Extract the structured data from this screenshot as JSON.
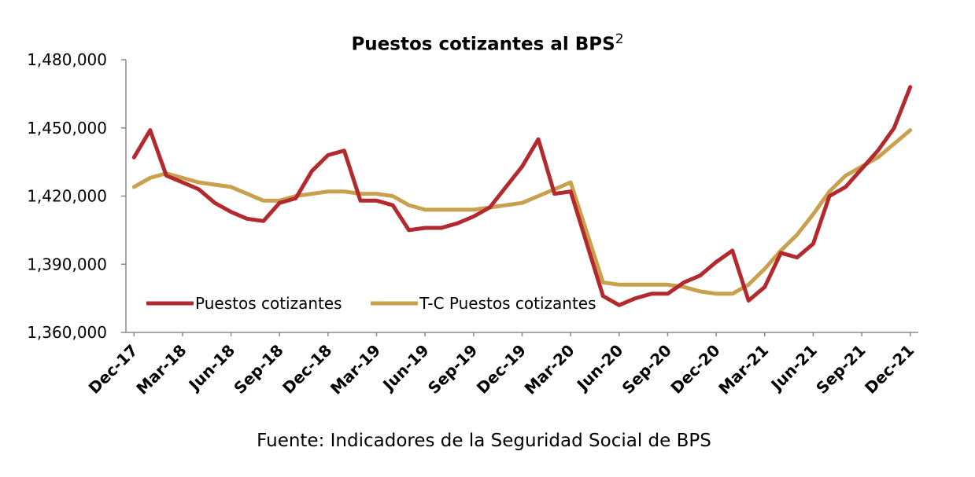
{
  "chart_data": {
    "type": "line",
    "title": "Puestos cotizantes al BPS",
    "title_superscript": "2",
    "source": "Fuente: Indicadores de la Seguridad Social de BPS",
    "xlabel": "",
    "ylabel": "",
    "ylim": [
      1360000,
      1480000
    ],
    "yticks": [
      "1,360,000",
      "1,390,000",
      "1,420,000",
      "1,450,000",
      "1,480,000"
    ],
    "ytick_values": [
      1360000,
      1390000,
      1420000,
      1450000,
      1480000
    ],
    "x": [
      "Dec-17",
      "Jan-18",
      "Feb-18",
      "Mar-18",
      "Apr-18",
      "May-18",
      "Jun-18",
      "Jul-18",
      "Aug-18",
      "Sep-18",
      "Oct-18",
      "Nov-18",
      "Dec-18",
      "Jan-19",
      "Feb-19",
      "Mar-19",
      "Apr-19",
      "May-19",
      "Jun-19",
      "Jul-19",
      "Aug-19",
      "Sep-19",
      "Oct-19",
      "Nov-19",
      "Dec-19",
      "Jan-20",
      "Feb-20",
      "Mar-20",
      "Apr-20",
      "May-20",
      "Jun-20",
      "Jul-20",
      "Aug-20",
      "Sep-20",
      "Oct-20",
      "Nov-20",
      "Dec-20",
      "Jan-21",
      "Feb-21",
      "Mar-21",
      "Apr-21",
      "May-21",
      "Jun-21",
      "Jul-21",
      "Aug-21",
      "Sep-21",
      "Oct-21",
      "Nov-21",
      "Dec-21"
    ],
    "xtick_labels": [
      "Dec-17",
      "Mar-18",
      "Jun-18",
      "Sep-18",
      "Dec-18",
      "Mar-19",
      "Jun-19",
      "Sep-19",
      "Dec-19",
      "Mar-20",
      "Jun-20",
      "Sep-20",
      "Dec-20",
      "Mar-21",
      "Jun-21",
      "Sep-21",
      "Dec-21"
    ],
    "xtick_indices": [
      0,
      3,
      6,
      9,
      12,
      15,
      18,
      21,
      24,
      27,
      30,
      33,
      36,
      39,
      42,
      45,
      48
    ],
    "grid": false,
    "legend_position": "bottom-left",
    "series": [
      {
        "name": "Puestos cotizantes",
        "color": "#b22a2e",
        "values": [
          1437000,
          1449000,
          1429000,
          1426000,
          1423000,
          1417000,
          1413000,
          1410000,
          1409000,
          1417000,
          1419000,
          1431000,
          1438000,
          1440000,
          1418000,
          1418000,
          1416000,
          1405000,
          1406000,
          1406000,
          1408000,
          1411000,
          1415000,
          1424000,
          1433000,
          1445000,
          1421000,
          1422000,
          1399000,
          1376000,
          1372000,
          1375000,
          1377000,
          1377000,
          1382000,
          1385000,
          1391000,
          1396000,
          1374000,
          1380000,
          1395000,
          1393000,
          1399000,
          1420000,
          1424000,
          1432000,
          1440000,
          1450000,
          1468000
        ]
      },
      {
        "name": "T-C Puestos cotizantes",
        "color": "#c9a04e",
        "values": [
          1424000,
          1428000,
          1430000,
          1428000,
          1426000,
          1425000,
          1424000,
          1421000,
          1418000,
          1418000,
          1420000,
          1421000,
          1422000,
          1422000,
          1421000,
          1421000,
          1420000,
          1416000,
          1414000,
          1414000,
          1414000,
          1414000,
          1415000,
          1416000,
          1417000,
          1420000,
          1423000,
          1426000,
          1404000,
          1382000,
          1381000,
          1381000,
          1381000,
          1381000,
          1380000,
          1378000,
          1377000,
          1377000,
          1381000,
          1388000,
          1396000,
          1403000,
          1412000,
          1422000,
          1429000,
          1433000,
          1437000,
          1443000,
          1449000
        ]
      }
    ]
  }
}
